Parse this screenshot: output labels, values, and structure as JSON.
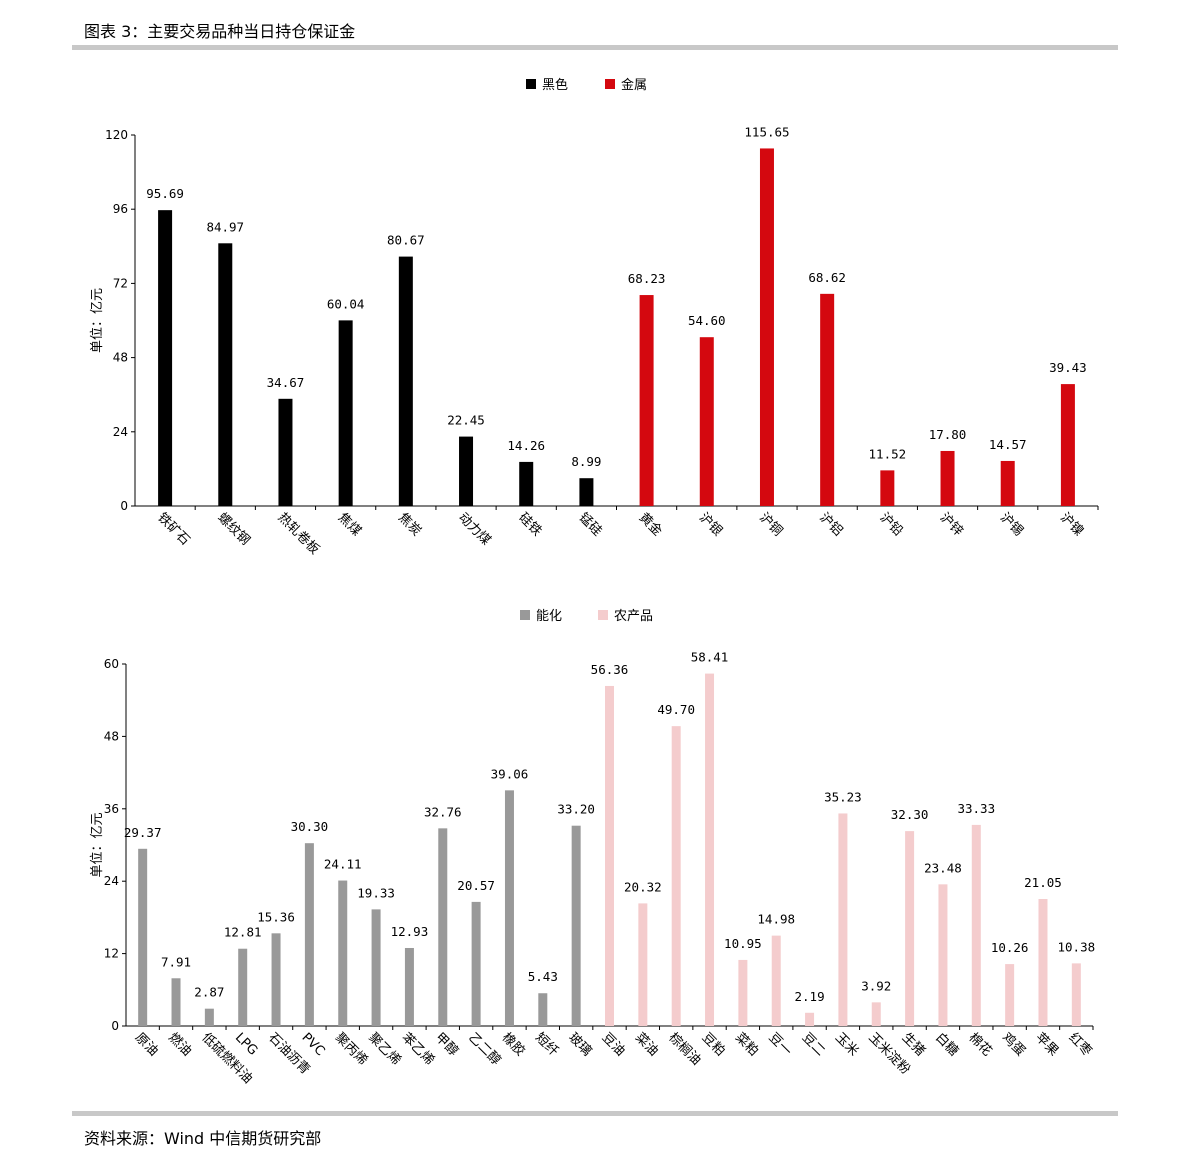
{
  "header": {
    "title": "图表 3：主要交易品种当日持仓保证金"
  },
  "footer": {
    "source": "资料来源：Wind  中信期货研究部"
  },
  "chart_data": [
    {
      "type": "bar",
      "ylabel": "单位：亿元",
      "ylim": [
        0,
        120
      ],
      "yticks": [
        0,
        24,
        48,
        72,
        96,
        120
      ],
      "legend": [
        "黑色",
        "金属"
      ],
      "legend_position": "top-center",
      "colors": {
        "黑色": "#000000",
        "金属": "#d4080f"
      },
      "categories": [
        "铁矿石",
        "螺纹钢",
        "热轧卷板",
        "焦煤",
        "焦炭",
        "动力煤",
        "硅铁",
        "锰硅",
        "黄金",
        "沪银",
        "沪铜",
        "沪铝",
        "沪铅",
        "沪锌",
        "沪锡",
        "沪镍"
      ],
      "values": [
        95.69,
        84.97,
        34.67,
        60.04,
        80.67,
        22.45,
        14.26,
        8.99,
        68.23,
        54.6,
        115.65,
        68.62,
        11.52,
        17.8,
        14.57,
        39.43
      ],
      "value_labels": [
        "95.69",
        "84.97",
        "34.67",
        "60.04",
        "80.67",
        "22.45",
        "14.26",
        "8.99",
        "68.23",
        "54.60",
        "115.65",
        "68.62",
        "11.52",
        "17.80",
        "14.57",
        "39.43"
      ],
      "groups": [
        "黑色",
        "黑色",
        "黑色",
        "黑色",
        "黑色",
        "黑色",
        "黑色",
        "黑色",
        "金属",
        "金属",
        "金属",
        "金属",
        "金属",
        "金属",
        "金属",
        "金属"
      ]
    },
    {
      "type": "bar",
      "ylabel": "单位：亿元",
      "ylim": [
        0,
        60
      ],
      "yticks": [
        0,
        12,
        24,
        36,
        48,
        60
      ],
      "legend": [
        "能化",
        "农产品"
      ],
      "legend_position": "top-center",
      "colors": {
        "能化": "#999999",
        "农产品": "#f4cccd"
      },
      "categories": [
        "原油",
        "燃油",
        "低硫燃料油",
        "LPG",
        "石油沥青",
        "PVC",
        "聚丙烯",
        "聚乙烯",
        "苯乙烯",
        "甲醇",
        "乙二醇",
        "橡胶",
        "短纤",
        "玻璃",
        "豆油",
        "菜油",
        "棕榈油",
        "豆粕",
        "菜粕",
        "豆一",
        "豆二",
        "玉米",
        "玉米淀粉",
        "生猪",
        "白糖",
        "棉花",
        "鸡蛋",
        "苹果",
        "红枣"
      ],
      "values": [
        29.37,
        7.91,
        2.87,
        12.81,
        15.36,
        30.3,
        24.11,
        19.33,
        12.93,
        32.76,
        20.57,
        39.06,
        5.43,
        33.2,
        56.36,
        20.32,
        49.7,
        58.41,
        10.95,
        14.98,
        2.19,
        35.23,
        3.92,
        32.3,
        23.48,
        33.33,
        10.26,
        21.05,
        10.38
      ],
      "value_labels": [
        "29.37",
        "7.91",
        "2.87",
        "12.81",
        "15.36",
        "30.30",
        "24.11",
        "19.33",
        "12.93",
        "32.76",
        "20.57",
        "39.06",
        "5.43",
        "33.20",
        "56.36",
        "20.32",
        "49.70",
        "58.41",
        "10.95",
        "14.98",
        "2.19",
        "35.23",
        "3.92",
        "32.30",
        "23.48",
        "33.33",
        "10.26",
        "21.05",
        "10.38"
      ],
      "groups": [
        "能化",
        "能化",
        "能化",
        "能化",
        "能化",
        "能化",
        "能化",
        "能化",
        "能化",
        "能化",
        "能化",
        "能化",
        "能化",
        "能化",
        "农产品",
        "农产品",
        "农产品",
        "农产品",
        "农产品",
        "农产品",
        "农产品",
        "农产品",
        "农产品",
        "农产品",
        "农产品",
        "农产品",
        "农产品",
        "农产品",
        "农产品"
      ]
    }
  ]
}
